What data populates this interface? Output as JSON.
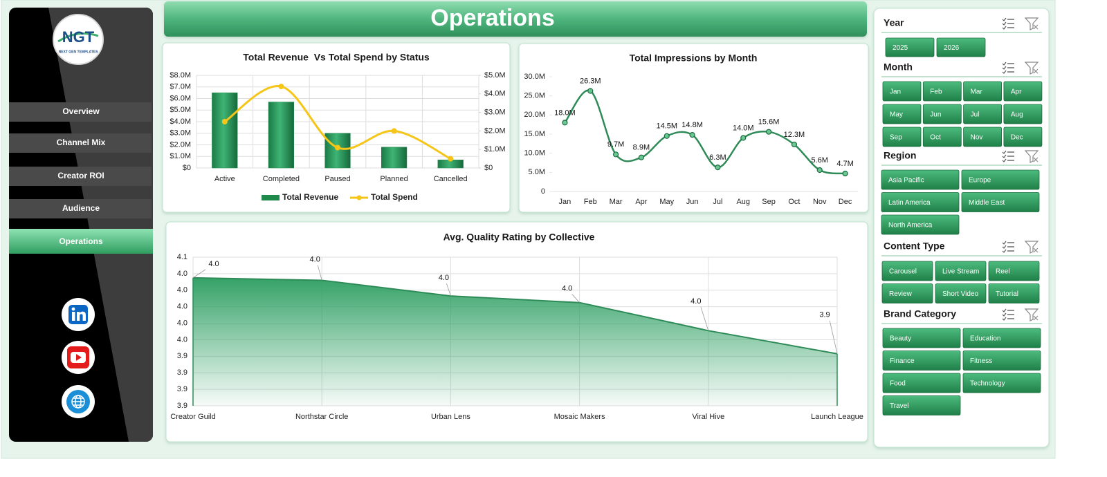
{
  "header": {
    "title": "Operations"
  },
  "sidebar": {
    "logo": "NGT",
    "tagline": "NEXT GEN TEMPLATES",
    "nav": [
      "Overview",
      "Channel Mix",
      "Creator ROI",
      "Audience",
      "Operations"
    ]
  },
  "chart_data": [
    {
      "type": "bar",
      "title": "Total Revenue  Vs Total Spend by Status",
      "categories": [
        "Active",
        "Completed",
        "Paused",
        "Planned",
        "Cancelled"
      ],
      "series": [
        {
          "name": "Total Revenue",
          "color": "#1f8a4c",
          "values": [
            6500000,
            5700000,
            3000000,
            1800000,
            700000
          ]
        },
        {
          "name": "Total Spend",
          "color": "#f5c518",
          "axis": "y2",
          "values": [
            2500000,
            4400000,
            1100000,
            2000000,
            500000
          ]
        }
      ],
      "ylim": [
        0,
        8000000
      ],
      "yticks": [
        {
          "value": 0,
          "label": "$0"
        },
        {
          "value": 1000000,
          "label": "$1.0M"
        },
        {
          "value": 2000000,
          "label": "$2.0M"
        },
        {
          "value": 3000000,
          "label": "$3.0M"
        },
        {
          "value": 4000000,
          "label": "$4.0M"
        },
        {
          "value": 5000000,
          "label": "$5.0M"
        },
        {
          "value": 6000000,
          "label": "$6.0M"
        },
        {
          "value": 7000000,
          "label": "$7.0M"
        },
        {
          "value": 8000000,
          "label": "$8.0M"
        }
      ],
      "y2lim": [
        0,
        5000000
      ],
      "y2ticks": [
        {
          "value": 0,
          "label": "$0"
        },
        {
          "value": 1000000,
          "label": "$1.0M"
        },
        {
          "value": 2000000,
          "label": "$2.0M"
        },
        {
          "value": 3000000,
          "label": "$3.0M"
        },
        {
          "value": 4000000,
          "label": "$4.0M"
        },
        {
          "value": 5000000,
          "label": "$5.0M"
        }
      ],
      "grid": true,
      "legend": "bottom"
    },
    {
      "type": "line",
      "title": "Total Impressions by Month",
      "categories": [
        "Jan",
        "Feb",
        "Mar",
        "Apr",
        "May",
        "Jun",
        "Jul",
        "Aug",
        "Sep",
        "Oct",
        "Nov",
        "Dec"
      ],
      "values": [
        18000000,
        26300000,
        9700000,
        8900000,
        14500000,
        14800000,
        6300000,
        14000000,
        15600000,
        12300000,
        5600000,
        4700000
      ],
      "value_labels": [
        "18.0M",
        "26.3M",
        "9.7M",
        "8.9M",
        "14.5M",
        "14.8M",
        "6.3M",
        "14.0M",
        "15.6M",
        "12.3M",
        "5.6M",
        "4.7M"
      ],
      "color": "#2e8b57",
      "ylim": [
        0,
        30000000
      ],
      "yticks": [
        0,
        {
          "value": 5000000,
          "label": "5.0M"
        },
        {
          "value": 10000000,
          "label": "10.0M"
        },
        {
          "value": 15000000,
          "label": "15.0M"
        },
        {
          "value": 20000000,
          "label": "20.0M"
        },
        {
          "value": 25000000,
          "label": "25.0M"
        },
        {
          "value": 30000000,
          "label": "30.0M"
        }
      ],
      "grid": false
    },
    {
      "type": "area",
      "title": "Avg. Quality Rating by Collective",
      "categories": [
        "Creator Guild",
        "Northstar Circle",
        "Urban Lens",
        "Mosaic Makers",
        "Viral Hive",
        "Launch League"
      ],
      "values": [
        4.035,
        4.032,
        4.013,
        4.005,
        3.971,
        3.943
      ],
      "value_labels": [
        "4.0",
        "4.0",
        "4.0",
        "4.0",
        "4.0",
        "3.9"
      ],
      "color": "#2e8b57",
      "ylim": [
        3.88,
        4.06
      ],
      "yticks": [
        {
          "value": 3.88,
          "label": "3.9"
        },
        {
          "value": 3.9,
          "label": "3.9"
        },
        {
          "value": 3.92,
          "label": "3.9"
        },
        {
          "value": 3.94,
          "label": "3.9"
        },
        {
          "value": 3.96,
          "label": "4.0"
        },
        {
          "value": 3.98,
          "label": "4.0"
        },
        {
          "value": 4.0,
          "label": "4.0"
        },
        {
          "value": 4.02,
          "label": "4.0"
        },
        {
          "value": 4.04,
          "label": "4.0"
        },
        {
          "value": 4.06,
          "label": "4.1"
        }
      ],
      "grid": true
    }
  ],
  "slicers": [
    {
      "title": "Year",
      "items": [
        "2025",
        "2026"
      ]
    },
    {
      "title": "Month",
      "items": [
        "Jan",
        "Feb",
        "Mar",
        "Apr",
        "May",
        "Jun",
        "Jul",
        "Aug",
        "Sep",
        "Oct",
        "Nov",
        "Dec"
      ]
    },
    {
      "title": "Region",
      "items": [
        "Asia Pacific",
        "Europe",
        "Latin America",
        "Middle East",
        "North America"
      ]
    },
    {
      "title": "Content Type",
      "items": [
        "Carousel",
        "Live Stream",
        "Reel",
        "Review",
        "Short Video",
        "Tutorial"
      ]
    },
    {
      "title": "Brand Category",
      "items": [
        "Beauty",
        "Education",
        "Finance",
        "Fitness",
        "Food",
        "Technology",
        "Travel"
      ]
    }
  ]
}
